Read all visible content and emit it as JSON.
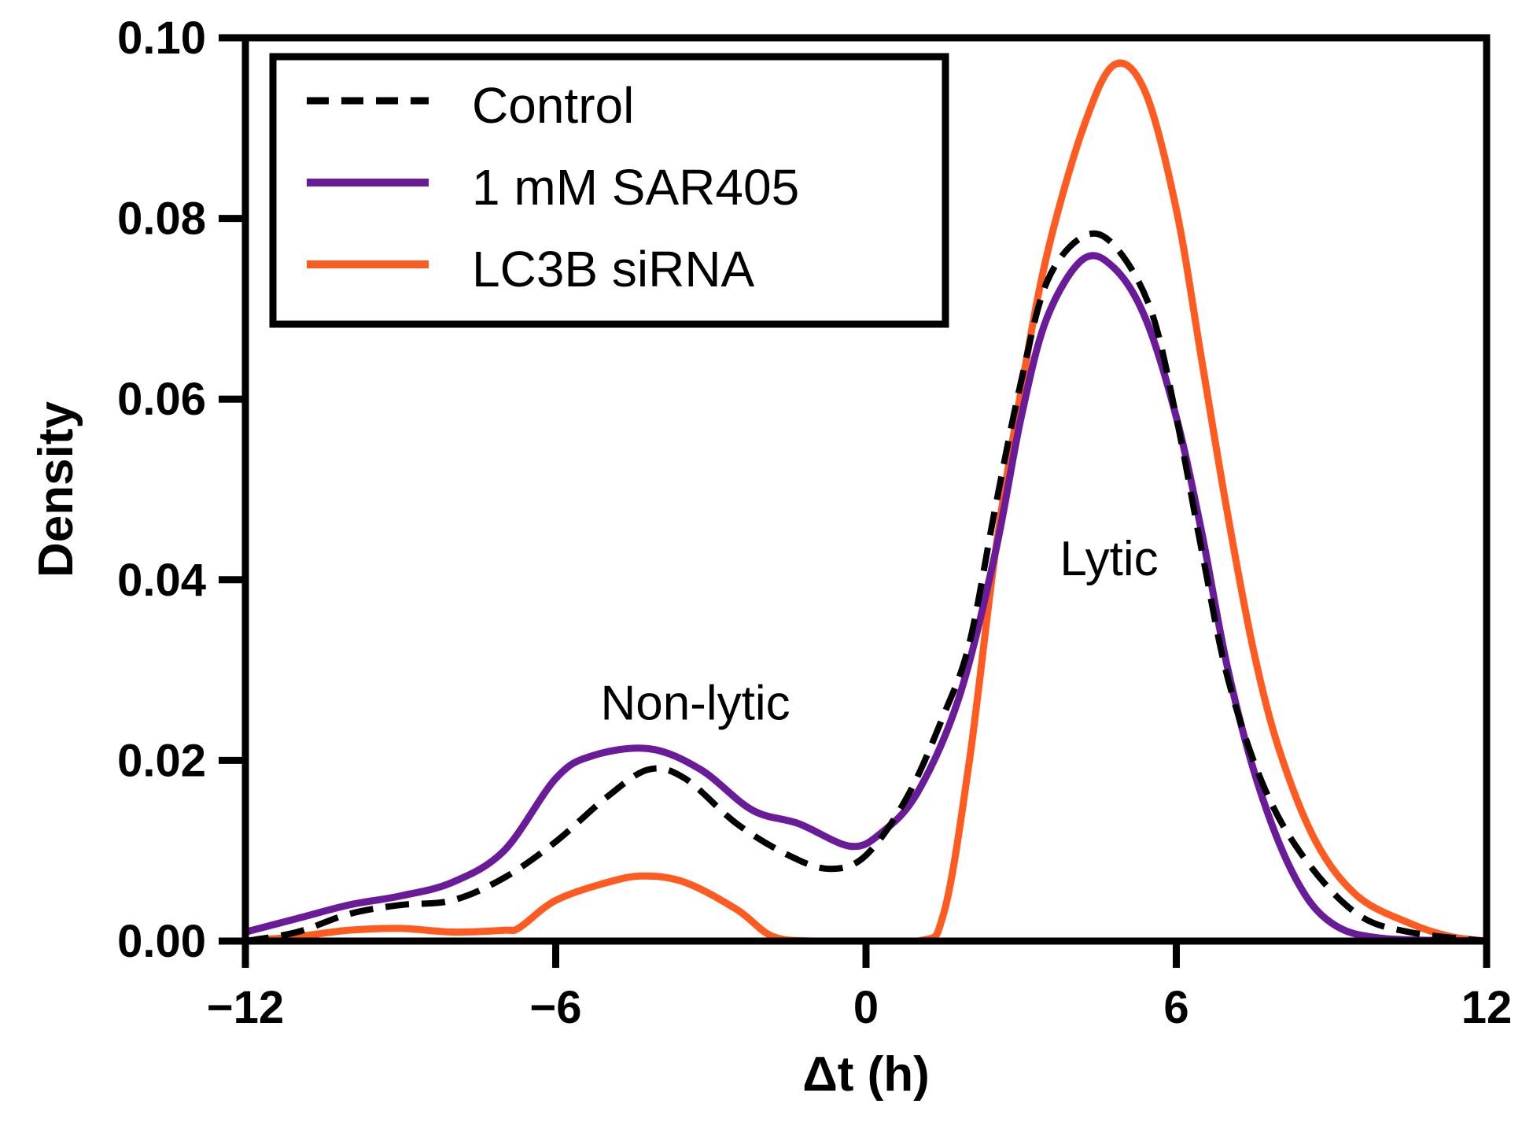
{
  "chart_data": {
    "type": "line",
    "title": "",
    "xlabel": "Δt (h)",
    "ylabel": "Density",
    "xlim": [
      -12,
      12
    ],
    "ylim": [
      0,
      0.1
    ],
    "xticks": [
      -12,
      -6,
      0,
      6,
      12
    ],
    "xtick_labels": [
      "−12",
      "−6",
      "0",
      "6",
      "12"
    ],
    "yticks": [
      0,
      0.02,
      0.04,
      0.06,
      0.08,
      0.1
    ],
    "ytick_labels": [
      "0.00",
      "0.02",
      "0.04",
      "0.06",
      "0.08",
      "0.10"
    ],
    "grid": false,
    "legend_position": "top-left",
    "series": [
      {
        "name": "Control",
        "color": "#000000",
        "style": "dashed",
        "points": [
          [
            -12,
            0.0
          ],
          [
            -11,
            0.001
          ],
          [
            -10,
            0.003
          ],
          [
            -9,
            0.004
          ],
          [
            -8,
            0.0045
          ],
          [
            -7,
            0.007
          ],
          [
            -6,
            0.011
          ],
          [
            -5,
            0.016
          ],
          [
            -4.2,
            0.019
          ],
          [
            -3.5,
            0.018
          ],
          [
            -2.5,
            0.013
          ],
          [
            -1.5,
            0.0095
          ],
          [
            -0.7,
            0.008
          ],
          [
            0,
            0.0095
          ],
          [
            0.8,
            0.016
          ],
          [
            1.5,
            0.025
          ],
          [
            2,
            0.033
          ],
          [
            2.5,
            0.048
          ],
          [
            3,
            0.062
          ],
          [
            3.5,
            0.073
          ],
          [
            4.2,
            0.078
          ],
          [
            4.8,
            0.077
          ],
          [
            5.5,
            0.07
          ],
          [
            6,
            0.058
          ],
          [
            6.5,
            0.043
          ],
          [
            7,
            0.029
          ],
          [
            7.7,
            0.017
          ],
          [
            8.5,
            0.009
          ],
          [
            9.5,
            0.003
          ],
          [
            10.5,
            0.001
          ],
          [
            12,
            0.0
          ]
        ]
      },
      {
        "name": "1 mM SAR405",
        "color": "#6a1b9a",
        "style": "solid",
        "points": [
          [
            -12,
            0.001
          ],
          [
            -11,
            0.0025
          ],
          [
            -10,
            0.004
          ],
          [
            -9,
            0.005
          ],
          [
            -8,
            0.0065
          ],
          [
            -7,
            0.01
          ],
          [
            -6,
            0.018
          ],
          [
            -5.3,
            0.0205
          ],
          [
            -4.2,
            0.0213
          ],
          [
            -3.2,
            0.019
          ],
          [
            -2.2,
            0.0145
          ],
          [
            -1.3,
            0.013
          ],
          [
            -0.3,
            0.0105
          ],
          [
            0.3,
            0.012
          ],
          [
            1,
            0.0165
          ],
          [
            1.8,
            0.027
          ],
          [
            2.5,
            0.043
          ],
          [
            3,
            0.058
          ],
          [
            3.5,
            0.069
          ],
          [
            4.2,
            0.0755
          ],
          [
            4.8,
            0.0745
          ],
          [
            5.4,
            0.069
          ],
          [
            6,
            0.058
          ],
          [
            6.5,
            0.045
          ],
          [
            7,
            0.03
          ],
          [
            7.6,
            0.017
          ],
          [
            8.3,
            0.007
          ],
          [
            9,
            0.002
          ],
          [
            10,
            0.0003
          ],
          [
            12,
            0.0
          ]
        ]
      },
      {
        "name": "LC3B siRNA",
        "color": "#ff5a1f",
        "style": "solid",
        "points": [
          [
            -12,
            0.0
          ],
          [
            -11,
            0.0005
          ],
          [
            -10,
            0.0012
          ],
          [
            -9,
            0.0014
          ],
          [
            -8,
            0.001
          ],
          [
            -7,
            0.0012
          ],
          [
            -6.7,
            0.0015
          ],
          [
            -6,
            0.0045
          ],
          [
            -5,
            0.0065
          ],
          [
            -4.3,
            0.0072
          ],
          [
            -3.5,
            0.0065
          ],
          [
            -2.5,
            0.0035
          ],
          [
            -1.8,
            0.0005
          ],
          [
            -1,
            0.0
          ],
          [
            1,
            0.0
          ],
          [
            1.5,
            0.003
          ],
          [
            2,
            0.02
          ],
          [
            2.5,
            0.043
          ],
          [
            3,
            0.061
          ],
          [
            3.5,
            0.076
          ],
          [
            4.2,
            0.09
          ],
          [
            4.8,
            0.097
          ],
          [
            5.4,
            0.094
          ],
          [
            6,
            0.081
          ],
          [
            6.5,
            0.064
          ],
          [
            7,
            0.047
          ],
          [
            7.5,
            0.032
          ],
          [
            8,
            0.021
          ],
          [
            8.7,
            0.011
          ],
          [
            9.5,
            0.005
          ],
          [
            10.5,
            0.002
          ],
          [
            11.3,
            0.0005
          ],
          [
            12,
            0.0
          ]
        ]
      }
    ],
    "annotations": [
      {
        "text": "Non-lytic",
        "x": -3.3,
        "y": 0.0245
      },
      {
        "text": "Lytic",
        "x": 4.7,
        "y": 0.0405
      }
    ]
  }
}
